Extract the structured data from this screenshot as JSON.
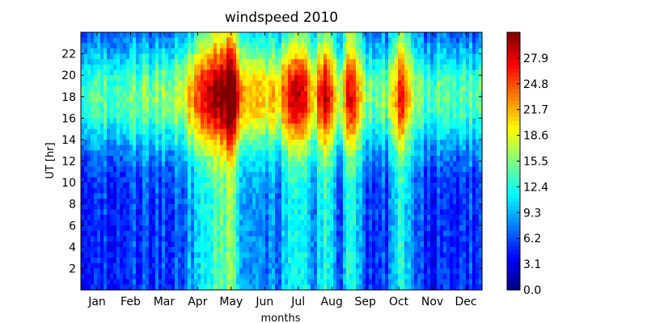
{
  "chart_data": {
    "type": "heatmap",
    "title": "windspeed 2010",
    "xlabel": "months",
    "ylabel": "UT [hr]",
    "x_categories": [
      "Jan",
      "Feb",
      "Mar",
      "Apr",
      "May",
      "Jun",
      "Jul",
      "Aug",
      "Sep",
      "Oct",
      "Nov",
      "Dec"
    ],
    "y_ticks": [
      2,
      4,
      6,
      8,
      10,
      12,
      14,
      16,
      18,
      20,
      22
    ],
    "ylim": [
      0,
      24
    ],
    "colorbar": {
      "ticks": [
        "0.0",
        "3.1",
        "6.2",
        "9.3",
        "12.4",
        "15.5",
        "18.6",
        "21.7",
        "24.8",
        "27.9"
      ],
      "range": [
        0,
        31
      ],
      "colormap": "jet"
    },
    "grid": false,
    "legend": "none",
    "colors": {
      "low": "#00007f",
      "high": "#7f0000",
      "frame": "#000000"
    }
  }
}
